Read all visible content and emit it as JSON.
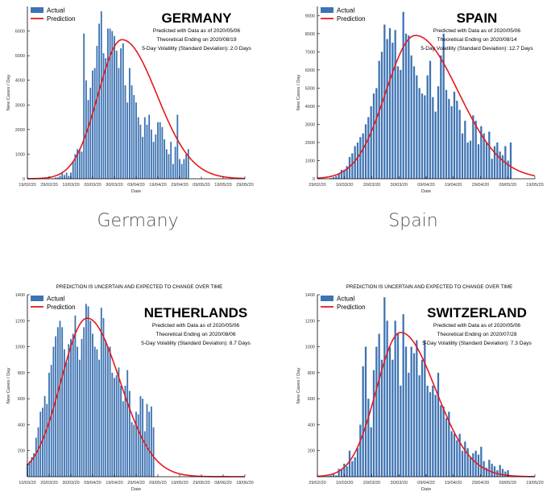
{
  "captions": [
    "Germany",
    "Spain"
  ],
  "colors": {
    "actual": "#3d73b3",
    "prediction": "#e41a1c",
    "axis": "#000000"
  },
  "chart_data": [
    {
      "type": "bar",
      "title": "GERMANY",
      "warning": "",
      "annotations": [
        "Predicted with Data as of 2020/05/06",
        "Theoretical Ending on 2020/08/19",
        "5-Day Volatility (Standard Deviation): 2.0 Days"
      ],
      "xlabel": "Date",
      "ylabel": "New Cases / Day",
      "x_ticks": [
        "19/02/20",
        "29/02/20",
        "10/03/20",
        "20/03/20",
        "30/03/20",
        "09/04/20",
        "19/04/20",
        "29/04/20",
        "09/05/20",
        "19/05/20",
        "29/05/20"
      ],
      "ylim": [
        0,
        7000
      ],
      "y_ticks": [
        0,
        1000,
        2000,
        3000,
        4000,
        5000,
        6000
      ],
      "legend": {
        "position": "top-left",
        "entries": [
          "Actual",
          "Prediction"
        ]
      },
      "series": [
        {
          "name": "Actual",
          "kind": "bar",
          "start_day": 3,
          "values": [
            0,
            0,
            0,
            0,
            10,
            0,
            0,
            0,
            0,
            20,
            50,
            60,
            120,
            220,
            150,
            250,
            120,
            250,
            700,
            1000,
            1200,
            1200,
            1100,
            5900,
            4000,
            3200,
            3700,
            4400,
            4500,
            5400,
            6300,
            6800,
            5100,
            4900,
            6100,
            6100,
            6000,
            5800,
            5200,
            4500,
            5300,
            5500,
            3800,
            3100,
            4500,
            3800,
            3400,
            3100,
            2500,
            2200,
            1700,
            2500,
            2200,
            2600,
            2000,
            1500,
            1800,
            2300,
            2300,
            2100,
            1600,
            1200,
            1000,
            1500,
            600,
            1300,
            2600,
            800,
            600,
            800,
            1000,
            1200
          ]
        },
        {
          "name": "Prediction",
          "kind": "line",
          "start_day": 0,
          "peak_day": 43.5,
          "peak_value": 5650,
          "sigma_left": 11,
          "sigma_right": 16
        }
      ]
    },
    {
      "type": "bar",
      "title": "SPAIN",
      "warning": "",
      "annotations": [
        "Predicted with Data as of 2020/05/06",
        "Theoretical Ending on 2020/08/14",
        "5-Day Volatility (Standard Deviation): 12.7 Days"
      ],
      "xlabel": "Date",
      "ylabel": "New Cases / Day",
      "x_ticks": [
        "29/02/20",
        "10/03/20",
        "20/03/20",
        "30/03/20",
        "09/04/20",
        "19/04/20",
        "29/04/20",
        "09/05/20",
        "19/05/20"
      ],
      "ylim": [
        0,
        9500
      ],
      "y_ticks": [
        0,
        1000,
        2000,
        3000,
        4000,
        5000,
        6000,
        7000,
        8000,
        9000
      ],
      "legend": {
        "position": "top-left",
        "entries": [
          "Actual",
          "Prediction"
        ]
      },
      "series": [
        {
          "name": "Actual",
          "kind": "bar",
          "start_day": 4,
          "values": [
            10,
            50,
            100,
            150,
            300,
            500,
            500,
            700,
            1200,
            1400,
            1800,
            2000,
            2300,
            2500,
            3000,
            3400,
            4000,
            4700,
            5000,
            6500,
            7000,
            8500,
            7700,
            8300,
            7500,
            8200,
            6200,
            6000,
            9200,
            8000,
            7900,
            6800,
            6200,
            5700,
            5000,
            4700,
            4600,
            5700,
            6500,
            4500,
            3700,
            5100,
            6800,
            8000,
            4900,
            4400,
            4000,
            4800,
            4300,
            3800,
            2500,
            3200,
            2000,
            2100,
            3500,
            3200,
            1900,
            2900,
            2500,
            2000,
            2600,
            1100,
            1800,
            2000,
            1500,
            1300,
            1800,
            1000,
            2000
          ]
        },
        {
          "name": "Prediction",
          "kind": "line",
          "start_day": 0,
          "peak_day": 36.5,
          "peak_value": 7900,
          "sigma_left": 11,
          "sigma_right": 16
        }
      ]
    },
    {
      "type": "bar",
      "title": "NETHERLANDS",
      "warning": "PREDICTION IS UNCERTAIN AND EXPECTED TO CHANGE OVER TIME",
      "annotations": [
        "Predicted with Data as of 2020/05/06",
        "Theoretical Ending on 2020/08/06",
        "5-Day Volatility (Standard Deviation): 8.7 Days"
      ],
      "xlabel": "Date",
      "ylabel": "New Cases / Day",
      "x_ticks": [
        "10/03/20",
        "20/03/20",
        "30/03/20",
        "09/04/20",
        "19/04/20",
        "29/04/20",
        "09/05/20",
        "19/05/20",
        "29/05/20",
        "08/06/20",
        "18/06/20"
      ],
      "ylim": [
        0,
        1400
      ],
      "y_ticks": [
        200,
        400,
        600,
        800,
        1000,
        1200,
        1400
      ],
      "legend": {
        "position": "top-left",
        "entries": [
          "Actual",
          "Prediction"
        ]
      },
      "series": [
        {
          "name": "Actual",
          "kind": "bar",
          "start_day": 0,
          "values": [
            100,
            120,
            150,
            180,
            300,
            380,
            500,
            530,
            620,
            560,
            800,
            860,
            1000,
            1080,
            1150,
            1200,
            1150,
            980,
            880,
            1020,
            1060,
            1100,
            1240,
            1000,
            900,
            1060,
            1150,
            1330,
            1310,
            1200,
            1100,
            1000,
            980,
            900,
            1300,
            1220,
            1050,
            1000,
            1000,
            800,
            760,
            780,
            840,
            700,
            580,
            700,
            820,
            660,
            420,
            400,
            500,
            480,
            620,
            600,
            350,
            560,
            500,
            540,
            380
          ]
        },
        {
          "name": "Prediction",
          "kind": "line",
          "start_day": 0,
          "peak_day": 27.5,
          "peak_value": 1220,
          "sigma_left": 12,
          "sigma_right": 15
        }
      ]
    },
    {
      "type": "bar",
      "title": "SWITZERLAND",
      "warning": "PREDICTION IS UNCERTAIN AND EXPECTED TO CHANGE OVER TIME",
      "annotations": [
        "Predicted with Data as of 2020/05/06",
        "Theoretical Ending on 2020/07/28",
        "5-Day Volatility (Standard Deviation): 7.3 Days"
      ],
      "xlabel": "Date",
      "ylabel": "New Cases / Day",
      "x_ticks": [
        "29/02/20",
        "10/03/20",
        "20/03/20",
        "30/03/20",
        "09/04/20",
        "19/04/20",
        "29/04/20",
        "09/05/20",
        "19/05/20"
      ],
      "ylim": [
        0,
        1400
      ],
      "y_ticks": [
        200,
        400,
        600,
        800,
        1000,
        1200,
        1400
      ],
      "legend": {
        "position": "top-left",
        "entries": [
          "Actual",
          "Prediction"
        ]
      },
      "series": [
        {
          "name": "Actual",
          "kind": "bar",
          "start_day": 3,
          "values": [
            0,
            5,
            10,
            20,
            10,
            60,
            60,
            100,
            80,
            200,
            120,
            150,
            220,
            400,
            850,
            1000,
            600,
            380,
            820,
            1000,
            1100,
            900,
            1380,
            1200,
            1000,
            900,
            1200,
            1100,
            700,
            1250,
            1000,
            800,
            1000,
            950,
            1050,
            780,
            900,
            1050,
            700,
            650,
            700,
            630,
            800,
            550,
            540,
            450,
            500,
            350,
            330,
            280,
            330,
            200,
            270,
            220,
            150,
            180,
            200,
            170,
            230,
            120,
            70,
            130,
            100,
            80,
            50,
            90,
            60,
            40,
            50
          ]
        },
        {
          "name": "Prediction",
          "kind": "line",
          "start_day": 0,
          "peak_day": 31,
          "peak_value": 1110,
          "sigma_left": 9,
          "sigma_right": 13
        }
      ]
    }
  ]
}
